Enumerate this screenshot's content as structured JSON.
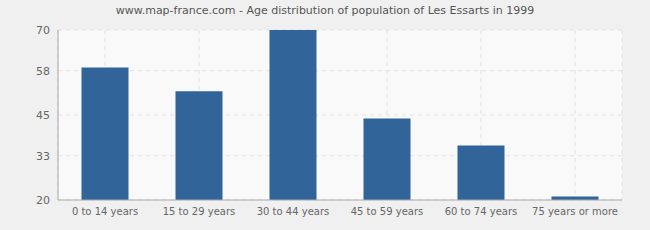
{
  "chart_data": {
    "type": "bar",
    "title": "www.map-france.com - Age distribution of population of Les Essarts in 1999",
    "categories": [
      "0 to 14 years",
      "15 to 29 years",
      "30 to 44 years",
      "45 to 59 years",
      "60 to 74 years",
      "75 years or more"
    ],
    "values": [
      59,
      52,
      70,
      44,
      36,
      21
    ],
    "color": "#31659a",
    "ylim": [
      20,
      70
    ],
    "yticks": [
      20,
      33,
      45,
      58,
      70
    ],
    "grid": true
  }
}
